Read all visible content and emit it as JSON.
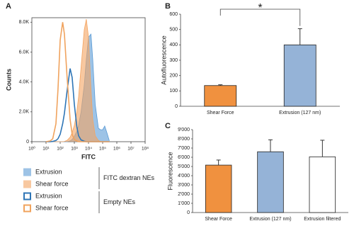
{
  "chart_data": [
    {
      "type": "area",
      "panel": "A",
      "xlabel": "FITC",
      "ylabel": "Counts",
      "xscale": "log",
      "x": [
        10,
        20,
        30,
        50,
        70,
        100,
        150,
        200,
        300,
        500,
        700,
        1000,
        1500,
        2000,
        3000,
        5000,
        7000,
        10000,
        15000,
        20000,
        30000,
        50000,
        70000,
        100000,
        140000,
        200000,
        300000
      ],
      "series": [
        {
          "name": "Extrusion",
          "color": "#5b9bd5",
          "style": "filled",
          "values": [
            0,
            0,
            0,
            0,
            0,
            0,
            0,
            0,
            0,
            50,
            150,
            350,
            700,
            1100,
            2000,
            3800,
            5500,
            7000,
            7200,
            5500,
            2500,
            900,
            800,
            800,
            1050,
            600,
            50
          ]
        },
        {
          "name": "Shear force",
          "color": "#f4a460",
          "style": "filled",
          "values": [
            0,
            0,
            0,
            0,
            0,
            0,
            0,
            20,
            80,
            300,
            600,
            1100,
            2000,
            3000,
            5000,
            7500,
            8200,
            7000,
            3500,
            1500,
            400,
            80,
            20,
            0,
            0,
            0,
            0
          ]
        },
        {
          "name": "Extrusion",
          "color": "#2e75b6",
          "style": "outline",
          "values": [
            0,
            0,
            20,
            80,
            200,
            500,
            1200,
            1900,
            3300,
            4900,
            4300,
            2500,
            1000,
            400,
            120,
            30,
            0,
            0,
            0,
            0,
            0,
            0,
            0,
            0,
            0,
            0,
            0
          ]
        },
        {
          "name": "Shear force",
          "color": "#f0a35e",
          "style": "outline",
          "values": [
            0,
            50,
            200,
            1200,
            3500,
            6800,
            8000,
            7200,
            4500,
            1500,
            500,
            150,
            50,
            0,
            0,
            0,
            0,
            0,
            0,
            0,
            0,
            0,
            0,
            0,
            0,
            0,
            0
          ]
        }
      ],
      "legend_groups": [
        "FITC dextran NEs",
        "Empty NEs"
      ],
      "xlim": [
        1,
        100000000
      ],
      "xticks": [
        {
          "value": 1,
          "label": "10⁰"
        },
        {
          "value": 10,
          "label": "10¹"
        },
        {
          "value": 100,
          "label": "10²"
        },
        {
          "value": 1000,
          "label": "10³"
        },
        {
          "value": 10000,
          "label": "10⁴"
        },
        {
          "value": 100000,
          "label": "10⁵"
        },
        {
          "value": 1000000,
          "label": "10⁶"
        },
        {
          "value": 10000000,
          "label": "10⁷"
        },
        {
          "value": 100000000,
          "label": "10⁸"
        }
      ],
      "ylim": [
        0,
        8300
      ],
      "yticks": [
        0,
        {
          "value": 2000,
          "label": "2.0K"
        },
        {
          "value": 4000,
          "label": "4.0K"
        },
        {
          "value": 6000,
          "label": "6.0K"
        },
        {
          "value": 8000,
          "label": "8.0K"
        }
      ]
    },
    {
      "type": "bar",
      "panel": "B",
      "ylabel": "Autofluorescence",
      "categories": [
        "Shear Force",
        "Extrusion (127 nm)"
      ],
      "values": [
        135,
        400
      ],
      "errors": [
        5,
        105
      ],
      "colors": [
        "#f0913f",
        "#95b3d7"
      ],
      "annotation": "*",
      "ylim": [
        0,
        600
      ],
      "yticks": [
        0,
        100,
        200,
        300,
        400,
        500,
        600
      ]
    },
    {
      "type": "bar",
      "panel": "C",
      "ylabel": "Fluorescence",
      "categories": [
        "Shear Force",
        "Extrusion (127 nm)",
        "Extrusion filtered"
      ],
      "values": [
        5150,
        6600,
        6050
      ],
      "errors": [
        550,
        1300,
        1800
      ],
      "colors": [
        "#f0913f",
        "#95b3d7",
        "#ffffff"
      ],
      "ylim": [
        0,
        9000
      ],
      "yticks": [
        0,
        {
          "value": 1000,
          "label": "1'000"
        },
        {
          "value": 2000,
          "label": "2'000"
        },
        {
          "value": 3000,
          "label": "3'000"
        },
        {
          "value": 4000,
          "label": "4'000"
        },
        {
          "value": 5000,
          "label": "5'000"
        },
        {
          "value": 6000,
          "label": "6'000"
        },
        {
          "value": 7000,
          "label": "7'000"
        },
        {
          "value": 8000,
          "label": "8'000"
        },
        {
          "value": 9000,
          "label": "9'000"
        }
      ]
    }
  ]
}
